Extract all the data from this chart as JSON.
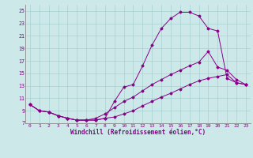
{
  "xlabel": "Windchill (Refroidissement éolien,°C)",
  "bg_color": "#cce8e8",
  "line_color": "#880088",
  "xlim": [
    -0.5,
    23.5
  ],
  "ylim": [
    7,
    26
  ],
  "yticks": [
    7,
    9,
    11,
    13,
    15,
    17,
    19,
    21,
    23,
    25
  ],
  "xticks": [
    0,
    1,
    2,
    3,
    4,
    5,
    6,
    7,
    8,
    9,
    10,
    11,
    12,
    13,
    14,
    15,
    16,
    17,
    18,
    19,
    20,
    21,
    22,
    23
  ],
  "curve1_x": [
    0,
    1,
    2,
    3,
    4,
    5,
    6,
    7,
    8,
    9,
    10,
    11,
    12,
    13,
    14,
    15,
    16,
    17,
    18,
    19,
    20,
    21,
    22,
    23
  ],
  "curve1_y": [
    10.0,
    9.0,
    8.8,
    8.2,
    7.8,
    7.5,
    7.5,
    7.5,
    7.8,
    10.5,
    12.8,
    13.2,
    16.2,
    19.5,
    22.2,
    23.8,
    24.8,
    24.8,
    24.2,
    22.2,
    21.8,
    14.2,
    13.5,
    13.2
  ],
  "curve2_x": [
    0,
    1,
    2,
    3,
    4,
    5,
    6,
    7,
    8,
    9,
    10,
    11,
    12,
    13,
    14,
    15,
    16,
    17,
    18,
    19,
    20,
    21,
    22,
    23
  ],
  "curve2_y": [
    10.0,
    9.0,
    8.8,
    8.2,
    7.8,
    7.5,
    7.5,
    7.8,
    8.5,
    9.5,
    10.5,
    11.2,
    12.2,
    13.2,
    14.0,
    14.8,
    15.5,
    16.2,
    16.8,
    18.5,
    16.0,
    15.5,
    14.0,
    13.2
  ],
  "curve3_x": [
    0,
    1,
    2,
    3,
    4,
    5,
    6,
    7,
    8,
    9,
    10,
    11,
    12,
    13,
    14,
    15,
    16,
    17,
    18,
    19,
    20,
    21,
    22,
    23
  ],
  "curve3_y": [
    10.0,
    9.0,
    8.8,
    8.2,
    7.8,
    7.5,
    7.5,
    7.5,
    7.8,
    8.0,
    8.5,
    9.0,
    9.8,
    10.5,
    11.2,
    11.8,
    12.5,
    13.2,
    13.8,
    14.2,
    14.5,
    14.8,
    13.5,
    13.2
  ]
}
